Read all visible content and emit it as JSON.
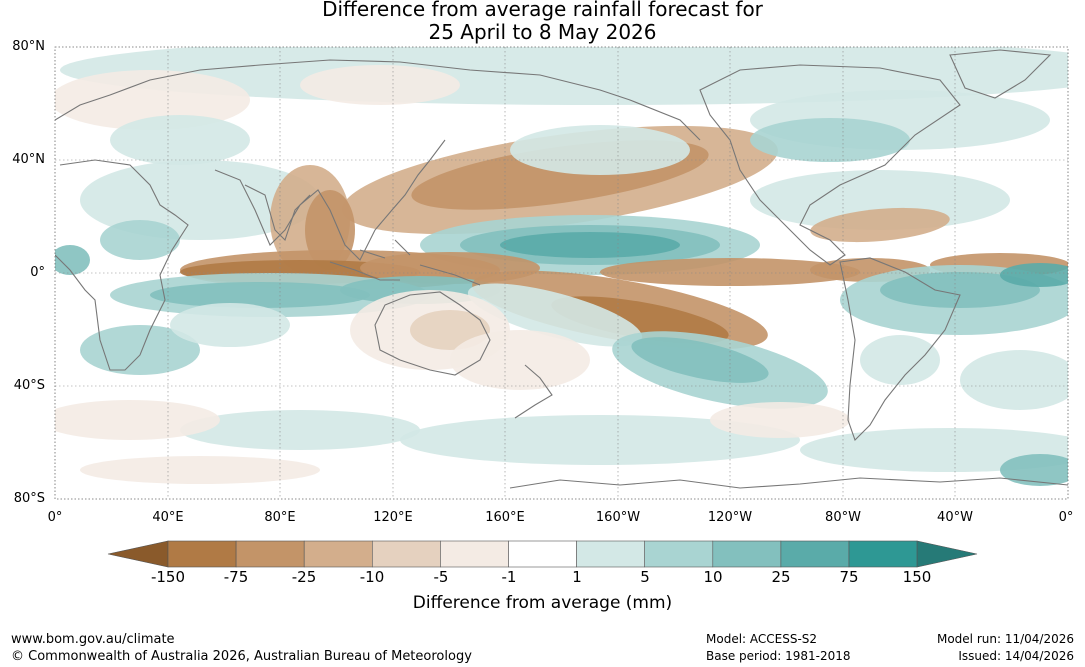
{
  "title_line1": "Difference from average rainfall forecast for",
  "title_line2": "25 April to 8 May 2026",
  "latitude_labels": [
    "80°N",
    "40°N",
    "0°",
    "40°S",
    "80°S"
  ],
  "longitude_labels": [
    "0°",
    "40°E",
    "80°E",
    "120°E",
    "160°E",
    "160°W",
    "120°W",
    "80°W",
    "40°W",
    "0°"
  ],
  "colorbar": {
    "title": "Difference from average (mm)",
    "tick_labels": [
      "-150",
      "-75",
      "-25",
      "-10",
      "-5",
      "-1",
      "1",
      "5",
      "10",
      "25",
      "75",
      "150"
    ],
    "colors": [
      "#8a5a2b",
      "#b07a45",
      "#c39468",
      "#d3ae8c",
      "#e5d1bf",
      "#f4ebe4",
      "#ffffff",
      "#d3e8e6",
      "#a9d4d2",
      "#83c0be",
      "#5aaba9",
      "#2e9894",
      "#267a77"
    ]
  },
  "footer": {
    "website": "www.bom.gov.au/climate",
    "copyright": "© Commonwealth of Australia 2026, Australian Bureau of Meteorology",
    "model": "Model: ACCESS-S2",
    "base_period": "Base period: 1981-2018",
    "model_run": "Model run: 11/04/2026",
    "issued": "Issued: 14/04/2026"
  }
}
